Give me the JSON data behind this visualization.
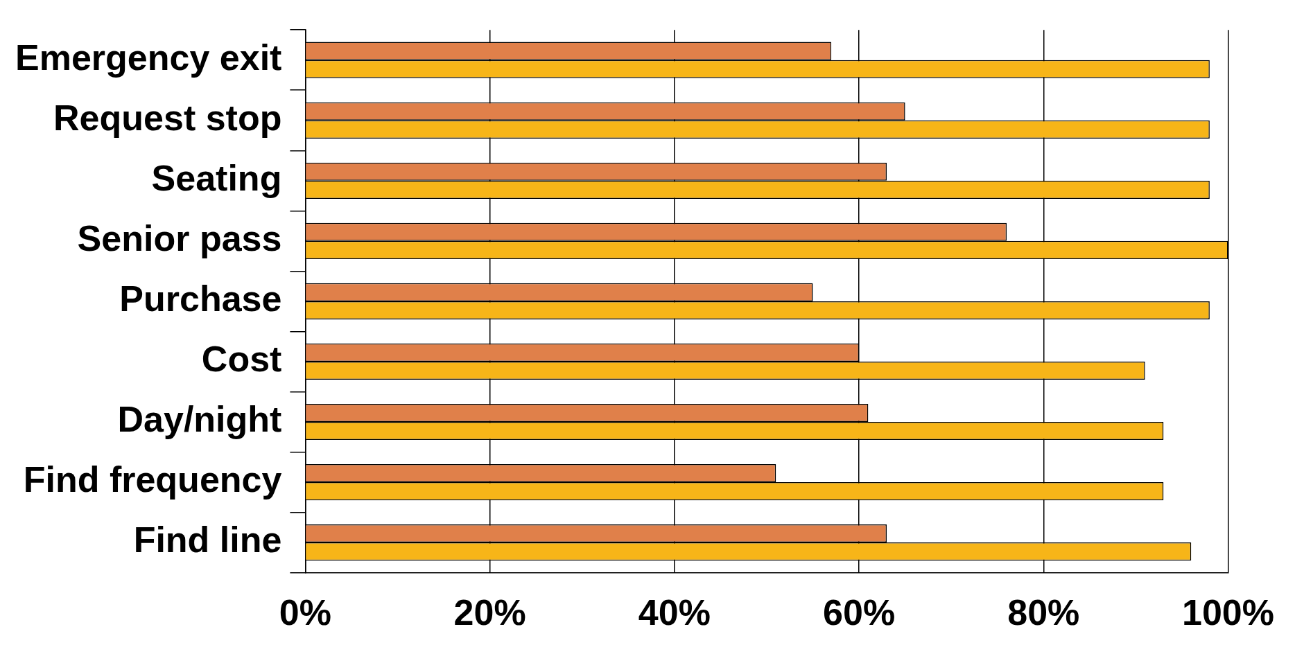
{
  "chart_data": {
    "type": "bar",
    "orientation": "horizontal",
    "categories": [
      "Emergency exit",
      "Request stop",
      "Seating",
      "Senior pass",
      "Purchase",
      "Cost",
      "Day/night",
      "Find frequency",
      "Find line"
    ],
    "series": [
      {
        "color": "#e0804a",
        "values": [
          57,
          65,
          63,
          76,
          55,
          60,
          61,
          51,
          63
        ]
      },
      {
        "color": "#f7b518",
        "values": [
          98,
          98,
          98,
          100,
          98,
          91,
          93,
          93,
          96
        ]
      }
    ],
    "xlim": [
      0,
      100
    ],
    "xticks": [
      {
        "value": 0,
        "label": "0%"
      },
      {
        "value": 20,
        "label": "20%"
      },
      {
        "value": 40,
        "label": "40%"
      },
      {
        "value": 60,
        "label": "60%"
      },
      {
        "value": 80,
        "label": "80%"
      },
      {
        "value": 100,
        "label": "100%"
      }
    ],
    "grid": "x",
    "legend": false
  }
}
